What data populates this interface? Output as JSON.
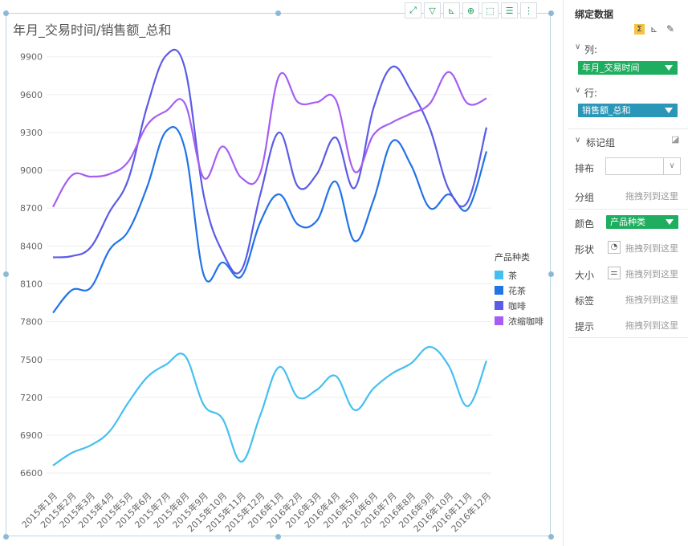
{
  "toolbar": {
    "buttons": [
      "fullscreen-icon",
      "filter-icon",
      "axis-icon",
      "zoom-icon",
      "select-icon",
      "list-icon",
      "more-icon"
    ]
  },
  "chart_data": {
    "type": "line",
    "title": "年月_交易时间/销售额_总和",
    "categories": [
      "2015年1月",
      "2015年2月",
      "2015年3月",
      "2015年4月",
      "2015年5月",
      "2015年6月",
      "2015年7月",
      "2015年8月",
      "2015年9月",
      "2015年10月",
      "2015年11月",
      "2015年12月",
      "2016年1月",
      "2016年2月",
      "2016年3月",
      "2016年4月",
      "2016年5月",
      "2016年6月",
      "2016年7月",
      "2016年8月",
      "2016年9月",
      "2016年10月",
      "2016年11月",
      "2016年12月"
    ],
    "yticks": [
      6600,
      6900,
      7200,
      7500,
      7800,
      8100,
      8400,
      8700,
      9000,
      9300,
      9600,
      9900
    ],
    "ylim": [
      6480,
      10000
    ],
    "grid": true,
    "legend": {
      "title": "产品种类",
      "placement": "right"
    },
    "series": [
      {
        "name": "茶",
        "color": "#45bff0",
        "values": [
          6660,
          6760,
          6820,
          6930,
          7160,
          7360,
          7460,
          7530,
          7140,
          7030,
          6690,
          7060,
          7440,
          7200,
          7260,
          7370,
          7100,
          7270,
          7390,
          7470,
          7600,
          7450,
          7130,
          7490
        ]
      },
      {
        "name": "花茶",
        "color": "#2173e8",
        "values": [
          7870,
          8050,
          8070,
          8370,
          8520,
          8870,
          9310,
          9170,
          8170,
          8270,
          8160,
          8590,
          8810,
          8570,
          8600,
          8910,
          8440,
          8760,
          9230,
          9040,
          8700,
          8810,
          8690,
          9150
        ]
      },
      {
        "name": "咖啡",
        "color": "#5b5be6",
        "values": [
          8310,
          8320,
          8390,
          8670,
          8930,
          9510,
          9910,
          9810,
          8800,
          8350,
          8210,
          8810,
          9300,
          8870,
          8970,
          9260,
          8860,
          9490,
          9820,
          9630,
          9330,
          8850,
          8750,
          9340
        ]
      },
      {
        "name": "浓缩咖啡",
        "color": "#a65ef2",
        "values": [
          8710,
          8960,
          8950,
          8970,
          9070,
          9360,
          9470,
          9530,
          8940,
          9190,
          8940,
          8980,
          9750,
          9540,
          9540,
          9560,
          8990,
          9280,
          9380,
          9450,
          9530,
          9780,
          9530,
          9570
        ]
      }
    ]
  },
  "panel": {
    "header": "绑定数据",
    "columns_label": "列:",
    "columns_value": "年月_交易时间",
    "rows_label": "行:",
    "rows_value": "销售额_总和",
    "marks_label": "标记组",
    "layout_label": "排布",
    "group_label": "分组",
    "color_label": "颜色",
    "color_value": "产品种类",
    "shape_label": "形状",
    "size_label": "大小",
    "tag_label": "标签",
    "tip_label": "提示",
    "drop_hint": "拖拽列到这里",
    "colors": {
      "columns": "#1fae5f",
      "rows": "#2a97b8",
      "color": "#1fae5f"
    }
  }
}
